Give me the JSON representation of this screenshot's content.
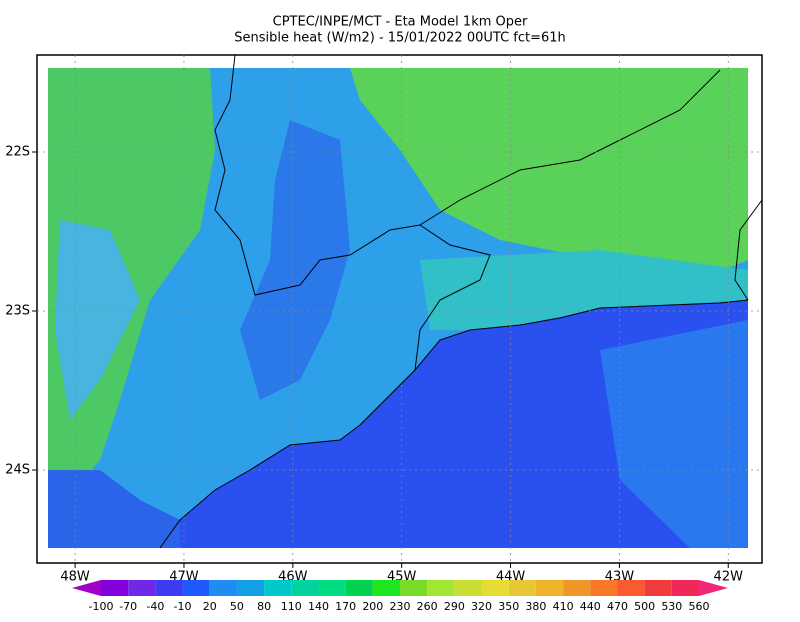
{
  "title": [
    "CPTEC/INPE/MCT -  Eta Model 1km Oper",
    "Sensible heat (W/m2) - 15/01/2022 00UTC fct=61h"
  ],
  "lonlim": [
    -48.35,
    -41.69
  ],
  "latlim": [
    -24.585,
    -21.39
  ],
  "lon_ticks": [
    {
      "value": -48,
      "label": "48W"
    },
    {
      "value": -47,
      "label": "47W"
    },
    {
      "value": -46,
      "label": "46W"
    },
    {
      "value": -45,
      "label": "45W"
    },
    {
      "value": -44,
      "label": "44W"
    },
    {
      "value": -43,
      "label": "43W"
    },
    {
      "value": -42,
      "label": "42W"
    }
  ],
  "lat_ticks": [
    {
      "value": -22,
      "label": "22S"
    },
    {
      "value": -23,
      "label": "23S"
    },
    {
      "value": -24,
      "label": "24S"
    }
  ],
  "colorbar": {
    "levels": [
      -100,
      -70,
      -40,
      -10,
      20,
      50,
      80,
      110,
      140,
      170,
      200,
      230,
      260,
      290,
      320,
      350,
      380,
      410,
      440,
      470,
      500,
      530,
      560
    ],
    "colors": [
      "#a000c8",
      "#8200dc",
      "#6e28e6",
      "#3c3cf0",
      "#1e5aff",
      "#1e8cf0",
      "#14a0e6",
      "#00c8c8",
      "#00d2a0",
      "#00dc82",
      "#00d250",
      "#1ee61e",
      "#78dc28",
      "#a0e632",
      "#c8dc32",
      "#e6dc32",
      "#e6c832",
      "#f0b428",
      "#f09628",
      "#fa7828",
      "#fa5a32",
      "#f03c3c",
      "#f0285a",
      "#f0287a"
    ]
  }
}
